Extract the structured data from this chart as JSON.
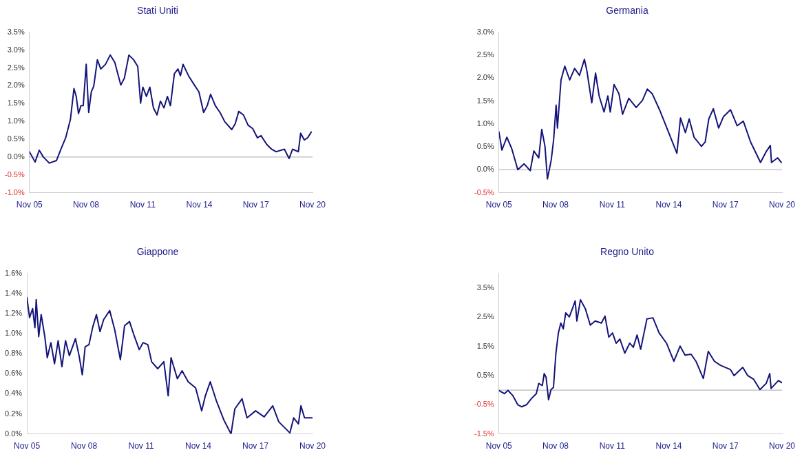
{
  "chart_data": [
    {
      "type": "line",
      "title": "Stati Uniti",
      "legend": false,
      "grid": false,
      "marker": "none",
      "line_style": "solid",
      "xlim": [
        "--11-05",
        "--11-20"
      ],
      "xticks": [
        {
          "value": "--11-05",
          "label": "Nov 05"
        },
        {
          "value": "--11-08",
          "label": "Nov 08"
        },
        {
          "value": "--11-11",
          "label": "Nov 11"
        },
        {
          "value": "--11-14",
          "label": "Nov 14"
        },
        {
          "value": "--11-17",
          "label": "Nov 17"
        },
        {
          "value": "--11-20",
          "label": "Nov 20"
        }
      ],
      "ylim": [
        -1.0,
        3.5
      ],
      "yticks": [
        {
          "value": -1.0,
          "label": "-1.0%"
        },
        {
          "value": -0.5,
          "label": "-0.5%"
        },
        {
          "value": 0,
          "label": "0.0%"
        },
        {
          "value": 0.5,
          "label": "0.5%"
        },
        {
          "value": 1.0,
          "label": "1.0%"
        },
        {
          "value": 1.5,
          "label": "1.5%"
        },
        {
          "value": 2.0,
          "label": "2.0%"
        },
        {
          "value": 2.5,
          "label": "2.5%"
        },
        {
          "value": 3.0,
          "label": "3.0%"
        },
        {
          "value": 3.5,
          "label": "3.5%"
        }
      ],
      "ref_lines": [
        {
          "axis": "y",
          "value": 0,
          "color": "#a6a6a6"
        }
      ],
      "series": [
        {
          "color": "#14147a",
          "x": [
            "--11-05T00:00",
            "--11-05T07:12",
            "--11-05T12:29",
            "--11-05T17:46",
            "--11-06T01:12",
            "--11-06T10:19",
            "--11-06T16:05",
            "--11-06T22:05",
            "--11-07T04:05",
            "--11-07T08:38",
            "--11-07T11:31",
            "--11-07T14:24",
            "--11-07T17:31",
            "--11-07T20:24",
            "--11-08T00:14",
            "--11-08T03:22",
            "--11-08T06:43",
            "--11-08T09:50",
            "--11-08T14:24",
            "--11-08T18:43",
            "--11-09T00:43",
            "--11-09T06:43",
            "--11-09T12:29",
            "--11-09T20:10",
            "--11-10T00:43",
            "--11-10T06:29",
            "--11-10T12:29",
            "--11-10T17:46",
            "--11-10T21:22",
            "--11-11T00:14",
            "--11-11T04:48",
            "--11-11T09:07",
            "--11-11T13:41",
            "--11-11T18:14",
            "--11-11T22:34",
            "--11-12T03:07",
            "--11-12T07:26",
            "--11-12T11:17",
            "--11-12T16:19",
            "--11-12T20:53",
            "--11-13T00:00",
            "--11-13T03:22",
            "--11-13T10:19",
            "--11-13T17:46",
            "--11-13T23:31",
            "--11-14T05:31",
            "--11-14T10:05",
            "--11-14T14:24",
            "--11-14T20:24",
            "--11-15T02:24",
            "--11-15T08:24",
            "--11-15T17:17",
            "--11-15T21:36",
            "--11-16T02:10",
            "--11-16T08:10",
            "--11-16T14:10",
            "--11-16T19:55",
            "--11-17T01:55",
            "--11-17T06:29",
            "--11-17T13:55",
            "--11-17T19:55",
            "--11-18T01:41",
            "--11-18T12:14",
            "--11-18T18:14",
            "--11-18T22:34",
            "--11-19T06:00",
            "--11-19T08:53",
            "--11-19T13:26",
            "--11-19T17:46",
            "--11-19T22:19"
          ],
          "values": [
            0.15,
            -0.14,
            0.19,
            0.0,
            -0.17,
            -0.1,
            0.22,
            0.54,
            1.05,
            1.92,
            1.7,
            1.22,
            1.44,
            1.44,
            2.6,
            1.25,
            1.83,
            1.99,
            2.73,
            2.47,
            2.6,
            2.86,
            2.66,
            2.02,
            2.21,
            2.86,
            2.73,
            2.54,
            1.51,
            1.96,
            1.7,
            1.96,
            1.38,
            1.18,
            1.57,
            1.38,
            1.7,
            1.44,
            2.34,
            2.47,
            2.28,
            2.6,
            2.28,
            2.02,
            1.83,
            1.25,
            1.44,
            1.76,
            1.44,
            1.25,
            0.99,
            0.77,
            0.93,
            1.28,
            1.18,
            0.89,
            0.8,
            0.54,
            0.6,
            0.35,
            0.22,
            0.15,
            0.22,
            -0.04,
            0.22,
            0.15,
            0.67,
            0.48,
            0.54,
            0.7
          ]
        }
      ]
    },
    {
      "type": "line",
      "title": "Germania",
      "legend": false,
      "grid": false,
      "marker": "none",
      "line_style": "solid",
      "xlim": [
        "--11-05",
        "--11-20"
      ],
      "xticks": [
        {
          "value": "--11-05",
          "label": "Nov 05"
        },
        {
          "value": "--11-08",
          "label": "Nov 08"
        },
        {
          "value": "--11-11",
          "label": "Nov 11"
        },
        {
          "value": "--11-14",
          "label": "Nov 14"
        },
        {
          "value": "--11-17",
          "label": "Nov 17"
        },
        {
          "value": "--11-20",
          "label": "Nov 20"
        }
      ],
      "ylim": [
        -0.5,
        3.0
      ],
      "yticks": [
        {
          "value": -0.5,
          "label": "-0.5%"
        },
        {
          "value": 0,
          "label": "0.0%"
        },
        {
          "value": 0.5,
          "label": "0.5%"
        },
        {
          "value": 1.0,
          "label": "1.0%"
        },
        {
          "value": 1.5,
          "label": "1.5%"
        },
        {
          "value": 2.0,
          "label": "2.0%"
        },
        {
          "value": 2.5,
          "label": "2.5%"
        },
        {
          "value": 3.0,
          "label": "3.0%"
        }
      ],
      "ref_lines": [
        {
          "axis": "y",
          "value": 0,
          "color": "#a6a6a6"
        }
      ],
      "series": [
        {
          "color": "#14147a",
          "x": [
            "--11-05T00:00",
            "--11-05T03:50",
            "--11-05T10:05",
            "--11-05T16:19",
            "--11-06T00:00",
            "--11-06T07:55",
            "--11-06T15:50",
            "--11-06T20:24",
            "--11-07T02:38",
            "--11-07T06:29",
            "--11-07T10:34",
            "--11-07T13:41",
            "--11-07T18:29",
            "--11-07T21:36",
            "--11-08T00:43",
            "--11-08T02:24",
            "--11-08T06:58",
            "--11-08T11:46",
            "--11-08T18:00",
            "--11-09T00:14",
            "--11-09T06:29",
            "--11-09T12:43",
            "--11-09T15:50",
            "--11-09T22:05",
            "--11-10T02:53",
            "--11-10T07:26",
            "--11-10T13:41",
            "--11-10T18:29",
            "--11-10T21:36",
            "--11-11T02:24",
            "--11-11T08:38",
            "--11-11T13:12",
            "--11-11T21:07",
            "--11-12T06:29",
            "--11-12T14:24",
            "--11-12T20:38",
            "--11-13T02:53",
            "--11-13T12:14",
            "--11-13T21:36",
            "--11-14T10:19",
            "--11-14T14:53",
            "--11-14T21:07",
            "--11-15T01:55",
            "--11-15T08:10",
            "--11-15T17:31",
            "--11-15T22:19",
            "--11-16T02:53",
            "--11-16T08:38",
            "--11-16T15:22",
            "--11-16T21:36",
            "--11-17T06:29",
            "--11-17T14:53",
            "--11-17T22:48",
            "--11-18T07:55",
            "--11-18T20:38",
            "--11-19T04:19",
            "--11-19T09:07",
            "--11-19T10:34",
            "--11-19T18:29",
            "--11-19T23:02"
          ],
          "values": [
            0.83,
            0.43,
            0.71,
            0.46,
            0.0,
            0.13,
            -0.02,
            0.41,
            0.26,
            0.88,
            0.51,
            -0.2,
            0.21,
            0.66,
            1.41,
            0.91,
            1.96,
            2.26,
            1.96,
            2.21,
            2.06,
            2.41,
            2.16,
            1.46,
            2.11,
            1.61,
            1.26,
            1.61,
            1.26,
            1.86,
            1.66,
            1.21,
            1.56,
            1.36,
            1.51,
            1.76,
            1.66,
            1.31,
            0.91,
            0.36,
            1.13,
            0.81,
            1.11,
            0.71,
            0.51,
            0.61,
            1.11,
            1.33,
            0.91,
            1.16,
            1.31,
            0.96,
            1.06,
            0.61,
            0.16,
            0.41,
            0.53,
            0.16,
            0.26,
            0.16
          ]
        }
      ]
    },
    {
      "type": "line",
      "title": "Giappone",
      "legend": false,
      "grid": false,
      "marker": "none",
      "line_style": "solid",
      "xlim": [
        "--11-05",
        "--11-20"
      ],
      "xticks": [
        {
          "value": "--11-05",
          "label": "Nov 05"
        },
        {
          "value": "--11-08",
          "label": "Nov 08"
        },
        {
          "value": "--11-11",
          "label": "Nov 11"
        },
        {
          "value": "--11-14",
          "label": "Nov 14"
        },
        {
          "value": "--11-17",
          "label": "Nov 17"
        },
        {
          "value": "--11-20",
          "label": "Nov 20"
        }
      ],
      "ylim": [
        0,
        1.6
      ],
      "yticks": [
        {
          "value": 0,
          "label": "0.0%"
        },
        {
          "value": 0.2,
          "label": "0.2%"
        },
        {
          "value": 0.4,
          "label": "0.4%"
        },
        {
          "value": 0.6,
          "label": "0.6%"
        },
        {
          "value": 0.8,
          "label": "0.8%"
        },
        {
          "value": 1.0,
          "label": "1.0%"
        },
        {
          "value": 1.2,
          "label": "1.2%"
        },
        {
          "value": 1.4,
          "label": "1.4%"
        },
        {
          "value": 1.6,
          "label": "1.6%"
        }
      ],
      "series": [
        {
          "color": "#14147a",
          "x": [
            "--11-05T00:00",
            "--11-05T03:22",
            "--11-05T07:12",
            "--11-05T10:05",
            "--11-05T11:46",
            "--11-05T14:53",
            "--11-05T18:00",
            "--11-05T22:34",
            "--11-06T01:41",
            "--11-06T06:14",
            "--11-06T10:48",
            "--11-06T15:22",
            "--11-06T20:10",
            "--11-07T00:43",
            "--11-07T05:31",
            "--11-07T13:12",
            "--11-07T17:46",
            "--11-07T21:50",
            "--11-08T01:26",
            "--11-08T06:14",
            "--11-08T10:48",
            "--11-08T15:36",
            "--11-08T20:10",
            "--11-09T00:43",
            "--11-09T08:24",
            "--11-09T14:38",
            "--11-09T21:50",
            "--11-10T03:07",
            "--11-10T09:22",
            "--11-10T15:36",
            "--11-10T21:36",
            "--11-11T02:24",
            "--11-11T08:24",
            "--11-11T13:12",
            "--11-11T20:53",
            "--11-12T04:34",
            "--11-12T10:05",
            "--11-12T13:41",
            "--11-12T21:36",
            "--11-13T03:36",
            "--11-13T11:17",
            "--11-13T20:38",
            "--11-14T04:19",
            "--11-14T08:53",
            "--11-14T15:07",
            "--11-14T22:48",
            "--11-15T08:10",
            "--11-15T17:17",
            "--11-15T22:05",
            "--11-16T07:12",
            "--11-16T13:26",
            "--11-17T00:14",
            "--11-17T11:02",
            "--11-17T21:50",
            "--11-18T05:31",
            "--11-18T19:26",
            "--11-19T00:14",
            "--11-19T06:14",
            "--11-19T09:22",
            "--11-19T13:55",
            "--11-19T23:31"
          ],
          "values": [
            1.36,
            1.16,
            1.25,
            1.06,
            1.34,
            0.97,
            1.19,
            0.97,
            0.76,
            0.91,
            0.7,
            0.93,
            0.67,
            0.93,
            0.78,
            0.95,
            0.78,
            0.59,
            0.87,
            0.89,
            1.06,
            1.19,
            1.02,
            1.14,
            1.23,
            1.04,
            0.74,
            1.08,
            1.12,
            0.97,
            0.84,
            0.91,
            0.89,
            0.72,
            0.65,
            0.72,
            0.38,
            0.76,
            0.55,
            0.63,
            0.52,
            0.46,
            0.23,
            0.38,
            0.52,
            0.33,
            0.14,
            0.0,
            0.25,
            0.35,
            0.16,
            0.23,
            0.17,
            0.28,
            0.12,
            0.01,
            0.16,
            0.1,
            0.28,
            0.16,
            0.16
          ]
        }
      ]
    },
    {
      "type": "line",
      "title": "Regno Unito",
      "legend": false,
      "grid": false,
      "marker": "none",
      "line_style": "solid",
      "xlim": [
        "--11-05",
        "--11-20"
      ],
      "xticks": [
        {
          "value": "--11-05",
          "label": "Nov 05"
        },
        {
          "value": "--11-08",
          "label": "Nov 08"
        },
        {
          "value": "--11-11",
          "label": "Nov 11"
        },
        {
          "value": "--11-14",
          "label": "Nov 14"
        },
        {
          "value": "--11-17",
          "label": "Nov 17"
        },
        {
          "value": "--11-20",
          "label": "Nov 20"
        }
      ],
      "ylim": [
        -1.5,
        4.0
      ],
      "yticks": [
        {
          "value": -1.5,
          "label": "-1.5%"
        },
        {
          "value": -0.5,
          "label": "-0.5%"
        },
        {
          "value": 0.5,
          "label": "0.5%"
        },
        {
          "value": 1.5,
          "label": "1.5%"
        },
        {
          "value": 2.5,
          "label": "2.5%"
        },
        {
          "value": 3.5,
          "label": "3.5%"
        }
      ],
      "ref_lines": [
        {
          "axis": "y",
          "value": 0,
          "color": "#a6a6a6"
        }
      ],
      "series": [
        {
          "color": "#14147a",
          "x": [
            "--11-05T00:00",
            "--11-05T06:58",
            "--11-05T11:31",
            "--11-05T17:46",
            "--11-06T00:00",
            "--11-06T04:48",
            "--11-06T11:02",
            "--11-06T17:17",
            "--11-06T23:31",
            "--11-07T02:38",
            "--11-07T07:12",
            "--11-07T09:36",
            "--11-07T12:00",
            "--11-07T15:07",
            "--11-07T18:14",
            "--11-07T21:22",
            "--11-08T00:29",
            "--11-08T03:36",
            "--11-08T06:43",
            "--11-08T09:50",
            "--11-08T12:58",
            "--11-08T17:31",
            "--11-08T22:19",
            "--11-09T00:58",
            "--11-09T03:07",
            "--11-09T07:41",
            "--11-09T13:55",
            "--11-09T20:10",
            "--11-10T02:24",
            "--11-10T10:19",
            "--11-10T14:53",
            "--11-10T19:41",
            "--11-11T00:29",
            "--11-11T05:02",
            "--11-11T09:50",
            "--11-11T16:05",
            "--11-11T22:19",
            "--11-12T02:53",
            "--11-12T07:41",
            "--11-12T12:14",
            "--11-12T20:10",
            "--11-13T03:50",
            "--11-13T11:46",
            "--11-13T21:07",
            "--11-14T06:29",
            "--11-14T14:24",
            "--11-14T20:38",
            "--11-15T04:19",
            "--11-15T10:34",
            "--11-15T19:55",
            "--11-16T02:10",
            "--11-16T10:05",
            "--11-16T17:46",
            "--11-17T06:14",
            "--11-17T11:02",
            "--11-17T22:05",
            "--11-18T04:19",
            "--11-18T12:00",
            "--11-18T19:55",
            "--11-19T03:50",
            "--11-19T08:24",
            "--11-19T10:05",
            "--11-19T19:26",
            "--11-19T23:31"
          ],
          "values": [
            -0.01,
            -0.12,
            -0.01,
            -0.19,
            -0.5,
            -0.57,
            -0.5,
            -0.29,
            -0.12,
            0.23,
            0.16,
            0.57,
            0.44,
            -0.33,
            0.02,
            0.09,
            1.27,
            1.96,
            2.3,
            2.1,
            2.65,
            2.51,
            2.86,
            3.06,
            2.37,
            3.1,
            2.79,
            2.23,
            2.37,
            2.3,
            2.54,
            1.82,
            1.96,
            1.61,
            1.75,
            1.27,
            1.61,
            1.47,
            1.89,
            1.4,
            2.44,
            2.48,
            1.96,
            1.61,
            0.99,
            1.51,
            1.2,
            1.23,
            0.99,
            0.4,
            1.33,
            0.99,
            0.85,
            0.71,
            0.5,
            0.78,
            0.5,
            0.37,
            0.02,
            0.23,
            0.57,
            0.06,
            0.33,
            0.26
          ]
        }
      ]
    }
  ]
}
